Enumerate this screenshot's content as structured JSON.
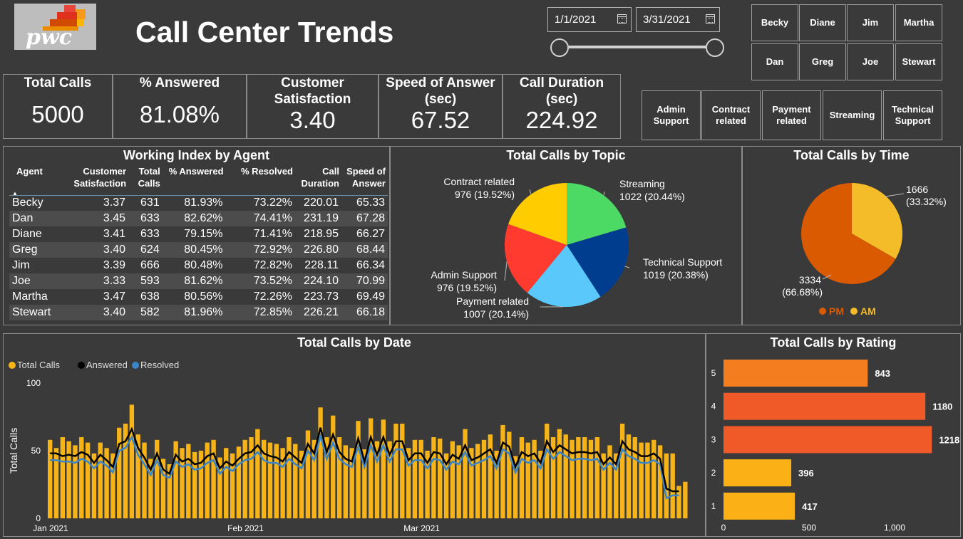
{
  "header": {
    "logo_text": "pwc",
    "title": "Call Center Trends",
    "date_start": "1/1/2021",
    "date_end": "3/31/2021",
    "date_range_fraction": [
      0,
      1
    ]
  },
  "agent_slicer": [
    "Becky",
    "Diane",
    "Jim",
    "Martha",
    "Dan",
    "Greg",
    "Joe",
    "Stewart"
  ],
  "topic_slicer": [
    "Admin Support",
    "Contract related",
    "Payment related",
    "Streaming",
    "Technical Support"
  ],
  "kpis": [
    {
      "label": "Total Calls",
      "value": "5000"
    },
    {
      "label": "% Answered",
      "value": "81.08%"
    },
    {
      "label": "Customer Satisfaction",
      "value": "3.40"
    },
    {
      "label": "Speed of Answer (sec)",
      "value": "67.52"
    },
    {
      "label": "Call Duration (sec)",
      "value": "224.92"
    }
  ],
  "agent_table": {
    "title": "Working Index by Agent",
    "columns": [
      "Agent",
      "Customer Satisfaction",
      "Total Calls",
      "% Answered",
      "% Resolved",
      "Call Duration",
      "Speed of Answer"
    ],
    "rows": [
      [
        "Becky",
        "3.37",
        "631",
        "81.93%",
        "73.22%",
        "220.01",
        "65.33"
      ],
      [
        "Dan",
        "3.45",
        "633",
        "82.62%",
        "74.41%",
        "231.19",
        "67.28"
      ],
      [
        "Diane",
        "3.41",
        "633",
        "79.15%",
        "71.41%",
        "218.95",
        "66.27"
      ],
      [
        "Greg",
        "3.40",
        "624",
        "80.45%",
        "72.92%",
        "226.80",
        "68.44"
      ],
      [
        "Jim",
        "3.39",
        "666",
        "80.48%",
        "72.82%",
        "228.11",
        "66.34"
      ],
      [
        "Joe",
        "3.33",
        "593",
        "81.62%",
        "73.52%",
        "224.10",
        "70.99"
      ],
      [
        "Martha",
        "3.47",
        "638",
        "80.56%",
        "72.26%",
        "223.73",
        "69.49"
      ],
      [
        "Stewart",
        "3.40",
        "582",
        "81.96%",
        "72.85%",
        "226.21",
        "66.18"
      ]
    ]
  },
  "chart_data": [
    {
      "type": "pie",
      "title": "Total Calls by Topic",
      "slices": [
        {
          "name": "Streaming",
          "value": 1022,
          "label": "1022 (20.44%)",
          "color": "#4cd964"
        },
        {
          "name": "Technical Support",
          "value": 1019,
          "label": "1019 (20.38%)",
          "color": "#003d8f"
        },
        {
          "name": "Payment related",
          "value": 1007,
          "label": "1007 (20.14%)",
          "color": "#5ac8fa"
        },
        {
          "name": "Admin Support",
          "value": 976,
          "label": "976 (19.52%)",
          "color": "#ff3b30"
        },
        {
          "name": "Contract related",
          "value": 976,
          "label": "976 (19.52%)",
          "color": "#ffcc00"
        }
      ]
    },
    {
      "type": "pie",
      "title": "Total Calls by Time",
      "slices": [
        {
          "name": "AM",
          "value": 1666,
          "label_value": "1666",
          "label_pct": "(33.32%)",
          "color": "#f5bc2a"
        },
        {
          "name": "PM",
          "value": 3334,
          "label_value": "3334",
          "label_pct": "(66.68%)",
          "color": "#d95a00"
        }
      ],
      "legend": [
        "PM",
        "AM"
      ],
      "legend_placement": "bottom"
    },
    {
      "type": "bar",
      "title": "Total Calls by Date",
      "ylabel": "Total Calls",
      "ylim": [
        0,
        100
      ],
      "yticks": [
        0,
        50,
        100
      ],
      "xticks": [
        "Jan 2021",
        "Feb 2021",
        "Mar 2021"
      ],
      "legend": [
        "Total Calls",
        "Answered",
        "Resolved"
      ],
      "legend_placement": "top-left",
      "colors": {
        "Total Calls": "#f6b418",
        "Answered": "#000000",
        "Resolved": "#3a86c8"
      },
      "total_calls": [
        58,
        52,
        60,
        57,
        54,
        60,
        56,
        48,
        56,
        52,
        48,
        67,
        70,
        84,
        62,
        56,
        44,
        58,
        44,
        40,
        57,
        52,
        55,
        49,
        50,
        56,
        58,
        45,
        52,
        48,
        53,
        58,
        60,
        66,
        58,
        56,
        55,
        52,
        60,
        55,
        50,
        65,
        58,
        82,
        60,
        76,
        60,
        54,
        52,
        72,
        51,
        74,
        57,
        73,
        57,
        70,
        70,
        52,
        58,
        58,
        50,
        60,
        59,
        48,
        57,
        54,
        66,
        52,
        55,
        58,
        62,
        50,
        69,
        64,
        46,
        60,
        56,
        58,
        50,
        70,
        60,
        66,
        62,
        58,
        60,
        60,
        58,
        60,
        48,
        54,
        48,
        70,
        62,
        60,
        56,
        56,
        58,
        54,
        48,
        48
      ],
      "answered": [
        48,
        48,
        46,
        47,
        46,
        49,
        47,
        41,
        47,
        43,
        38,
        55,
        57,
        66,
        52,
        45,
        36,
        48,
        36,
        33,
        47,
        42,
        44,
        40,
        41,
        46,
        48,
        37,
        42,
        39,
        44,
        48,
        49,
        54,
        48,
        46,
        45,
        42,
        49,
        45,
        41,
        55,
        48,
        67,
        49,
        62,
        49,
        44,
        42,
        59,
        42,
        60,
        47,
        60,
        47,
        57,
        57,
        43,
        48,
        48,
        41,
        49,
        48,
        40,
        47,
        44,
        54,
        43,
        45,
        48,
        51,
        41,
        56,
        53,
        38,
        49,
        46,
        48,
        41,
        57,
        49,
        54,
        51,
        48,
        49,
        49,
        48,
        49,
        40,
        45,
        40,
        57,
        51,
        49,
        46,
        46,
        48,
        44,
        22,
        20
      ],
      "resolved": [
        43,
        43,
        42,
        42,
        41,
        44,
        42,
        37,
        42,
        39,
        34,
        50,
        52,
        60,
        47,
        40,
        32,
        43,
        32,
        30,
        42,
        38,
        40,
        36,
        37,
        41,
        43,
        33,
        38,
        35,
        40,
        43,
        44,
        49,
        43,
        41,
        41,
        38,
        44,
        40,
        37,
        50,
        43,
        61,
        44,
        56,
        44,
        40,
        38,
        53,
        38,
        54,
        42,
        54,
        42,
        51,
        51,
        39,
        43,
        43,
        37,
        44,
        43,
        36,
        42,
        40,
        49,
        39,
        41,
        43,
        46,
        37,
        51,
        48,
        34,
        44,
        41,
        43,
        37,
        51,
        44,
        49,
        46,
        43,
        44,
        44,
        43,
        44,
        36,
        41,
        36,
        51,
        46,
        44,
        41,
        41,
        43,
        40,
        15,
        17
      ],
      "total_calls_tail": [
        24,
        27
      ]
    },
    {
      "type": "bar",
      "orientation": "horizontal",
      "title": "Total Calls by Rating",
      "categories": [
        "5",
        "4",
        "3",
        "2",
        "1"
      ],
      "values": [
        843,
        1180,
        1218,
        396,
        417
      ],
      "value_labels": [
        "843",
        "1180",
        "1218",
        "396",
        "417"
      ],
      "colors": [
        "#f47d20",
        "#f05a28",
        "#f05a28",
        "#fbb116",
        "#fbb116"
      ],
      "xticks": [
        "0",
        "500",
        "1,000"
      ],
      "xlim": [
        0,
        1400
      ]
    }
  ]
}
